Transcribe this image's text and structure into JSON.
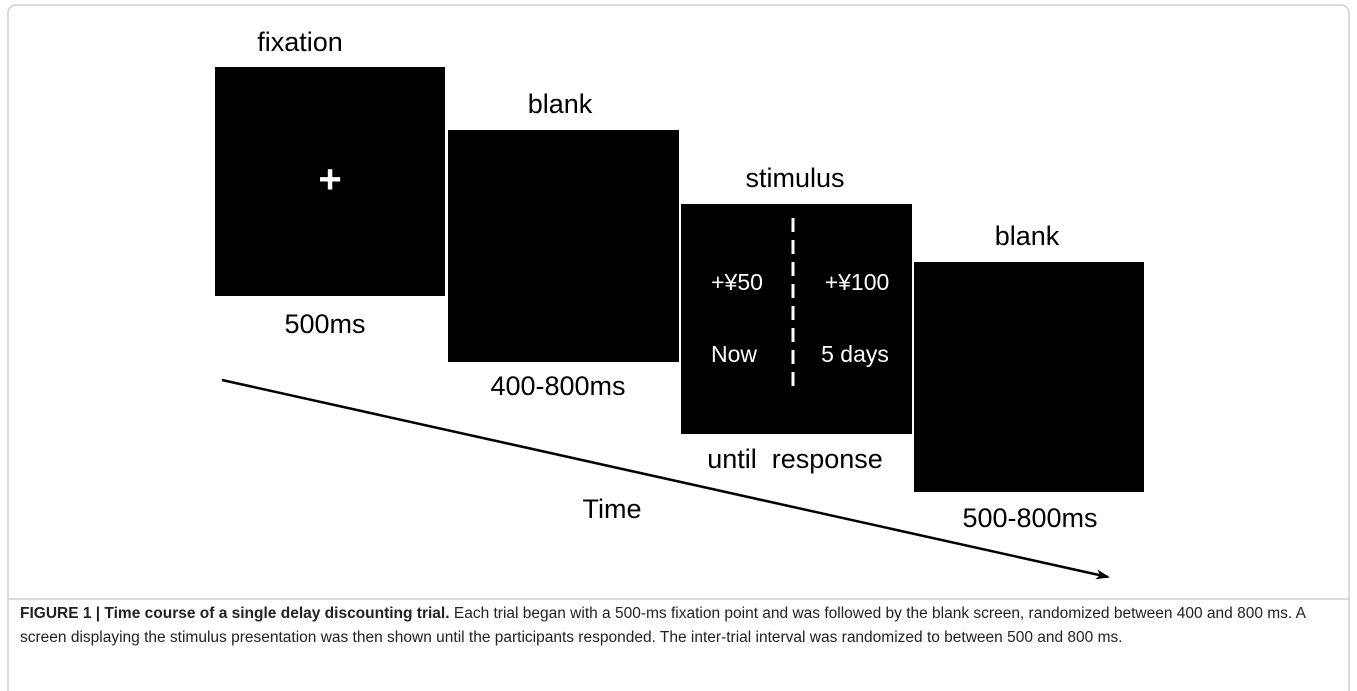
{
  "screens": [
    {
      "label": "fixation",
      "duration": "500ms",
      "content": "+"
    },
    {
      "label": "blank",
      "duration": "400-800ms"
    },
    {
      "label": "stimulus",
      "duration": "until  response",
      "options": [
        {
          "amount": "+¥50",
          "delay": "Now"
        },
        {
          "amount": "+¥100",
          "delay": "5 days"
        }
      ]
    },
    {
      "label": "blank",
      "duration": "500-800ms"
    }
  ],
  "axis_label": "Time",
  "caption": {
    "title": "FIGURE 1 | Time course of a single delay discounting trial.",
    "text": "Each trial began with a 500-ms fixation point and was followed by the blank screen, randomized between 400 and 800 ms. A screen displaying the stimulus presentation was then shown until the participants responded. The inter-trial interval was randomized to between 500 and 800 ms."
  }
}
